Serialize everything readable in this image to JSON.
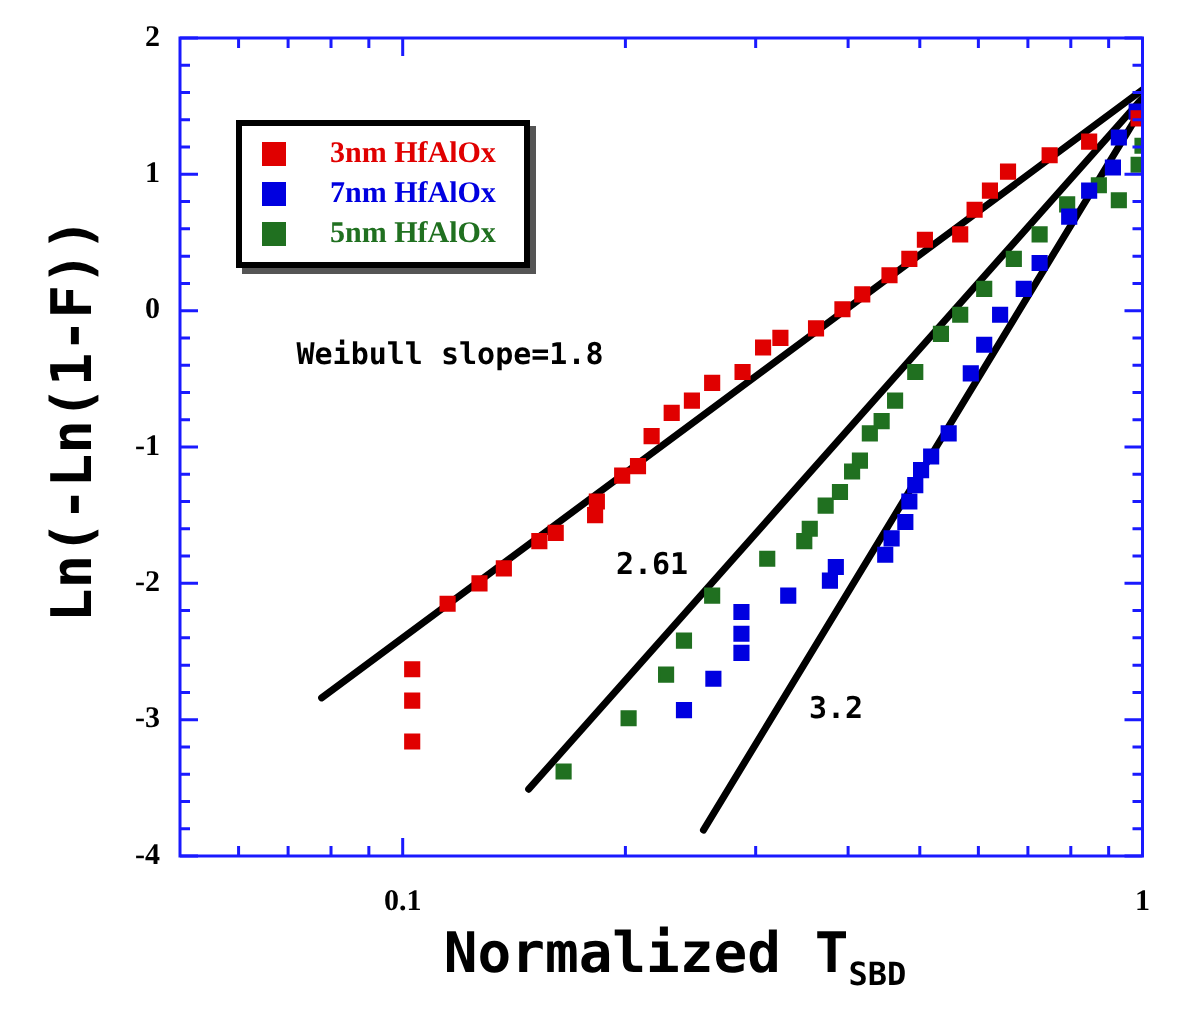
{
  "chart_data": {
    "type": "scatter",
    "xlabel": "Normalized T$_{SBD}$",
    "ylabel": "Ln(-Ln(1-F))",
    "log": "x",
    "legend": "top left",
    "tick_labels": true,
    "xlim": [
      0.05,
      1
    ],
    "ylim": [
      -4,
      2
    ],
    "xticks": [
      {
        "value": 0.06,
        "label": null
      },
      {
        "value": 0.07,
        "label": null
      },
      {
        "value": 0.08,
        "label": null
      },
      {
        "value": 0.09,
        "label": null
      },
      0.1,
      {
        "value": 0.2,
        "label": null
      },
      {
        "value": 0.3,
        "label": null
      },
      {
        "value": 0.4,
        "label": null
      },
      {
        "value": 0.5,
        "label": null
      },
      {
        "value": 0.6,
        "label": null
      },
      {
        "value": 0.7,
        "label": null
      },
      {
        "value": 0.8,
        "label": null
      },
      {
        "value": 0.9,
        "label": null
      },
      1
    ],
    "yticks": [
      -4,
      {
        "value": -3.8,
        "label": null
      },
      {
        "value": -3.6,
        "label": null
      },
      {
        "value": -3.4,
        "label": null
      },
      {
        "value": -3.2,
        "label": null
      },
      -3,
      {
        "value": -2.8,
        "label": null
      },
      {
        "value": -2.6,
        "label": null
      },
      {
        "value": -2.4,
        "label": null
      },
      {
        "value": -2.2,
        "label": null
      },
      -2,
      {
        "value": -1.8,
        "label": null
      },
      {
        "value": -1.6,
        "label": null
      },
      {
        "value": -1.4,
        "label": null
      },
      {
        "value": -1.2,
        "label": null
      },
      -1,
      {
        "value": -0.8,
        "label": null
      },
      {
        "value": -0.6,
        "label": null
      },
      {
        "value": -0.4,
        "label": null
      },
      {
        "value": -0.2,
        "label": null
      },
      0,
      {
        "value": 0.2,
        "label": null
      },
      {
        "value": 0.4,
        "label": null
      },
      {
        "value": 0.6,
        "label": null
      },
      {
        "value": 0.8,
        "label": null
      },
      1,
      {
        "value": 1.2,
        "label": null
      },
      {
        "value": 1.4,
        "label": null
      },
      {
        "value": 1.6,
        "label": null
      },
      {
        "value": 1.8,
        "label": null
      },
      2
    ],
    "series": [
      {
        "name": "3nm HfAlOx",
        "marker": "square",
        "color": "#e00000",
        "x": [
          0.103,
          0.103,
          0.103,
          0.115,
          0.127,
          0.137,
          0.153,
          0.161,
          0.182,
          0.183,
          0.198,
          0.208,
          0.217,
          0.231,
          0.246,
          0.262,
          0.288,
          0.307,
          0.324,
          0.362,
          0.393,
          0.418,
          0.455,
          0.484,
          0.508,
          0.567,
          0.593,
          0.622,
          0.658,
          0.749,
          0.847,
          0.988
        ],
        "values": [
          -3.16,
          -2.86,
          -2.63,
          -2.15,
          -2.0,
          -1.89,
          -1.69,
          -1.63,
          -1.5,
          -1.4,
          -1.21,
          -1.14,
          -0.92,
          -0.75,
          -0.66,
          -0.53,
          -0.45,
          -0.27,
          -0.2,
          -0.13,
          0.01,
          0.12,
          0.26,
          0.38,
          0.52,
          0.56,
          0.74,
          0.88,
          1.02,
          1.14,
          1.24,
          1.41
        ]
      },
      {
        "name": "7nm HfAlOx",
        "marker": "square",
        "color": "#0000e0",
        "x": [
          0.24,
          0.263,
          0.287,
          0.287,
          0.287,
          0.332,
          0.378,
          0.385,
          0.449,
          0.458,
          0.478,
          0.484,
          0.493,
          0.502,
          0.518,
          0.547,
          0.586,
          0.611,
          0.642,
          0.691,
          0.726,
          0.796,
          0.847,
          0.912,
          0.929,
          0.982
        ],
        "values": [
          -2.93,
          -2.7,
          -2.51,
          -2.37,
          -2.21,
          -2.09,
          -1.98,
          -1.88,
          -1.79,
          -1.67,
          -1.55,
          -1.4,
          -1.28,
          -1.17,
          -1.07,
          -0.9,
          -0.46,
          -0.25,
          -0.03,
          0.16,
          0.35,
          0.69,
          0.88,
          1.05,
          1.27,
          1.46
        ]
      },
      {
        "name": "5nm HfAlOx",
        "marker": "square",
        "color": "#207020",
        "x": [
          0.165,
          0.202,
          0.227,
          0.24,
          0.262,
          0.311,
          0.349,
          0.355,
          0.373,
          0.39,
          0.405,
          0.415,
          0.428,
          0.444,
          0.463,
          0.493,
          0.534,
          0.567,
          0.611,
          0.67,
          0.726,
          0.791,
          0.873,
          0.929,
          0.988,
          1.0
        ],
        "values": [
          -3.38,
          -2.99,
          -2.67,
          -2.42,
          -2.09,
          -1.82,
          -1.69,
          -1.6,
          -1.43,
          -1.33,
          -1.18,
          -1.1,
          -0.9,
          -0.81,
          -0.66,
          -0.45,
          -0.17,
          -0.03,
          0.16,
          0.38,
          0.56,
          0.78,
          0.92,
          0.81,
          1.07,
          1.21
        ]
      },
      {
        "type": "line",
        "marker": "none",
        "color": "#000000",
        "x": [
          0.0777,
          1.0
        ],
        "values": [
          -2.84,
          1.62
        ]
      },
      {
        "type": "line",
        "marker": "none",
        "color": "#000000",
        "x": [
          0.148,
          1.0
        ],
        "values": [
          -3.51,
          1.56
        ]
      },
      {
        "type": "line",
        "marker": "none",
        "color": "#000000",
        "x": [
          0.255,
          1.0
        ],
        "values": [
          -3.81,
          1.49
        ]
      }
    ],
    "annotations": [
      "Weibull slope=1.8",
      "2.61",
      "3.2"
    ]
  }
}
